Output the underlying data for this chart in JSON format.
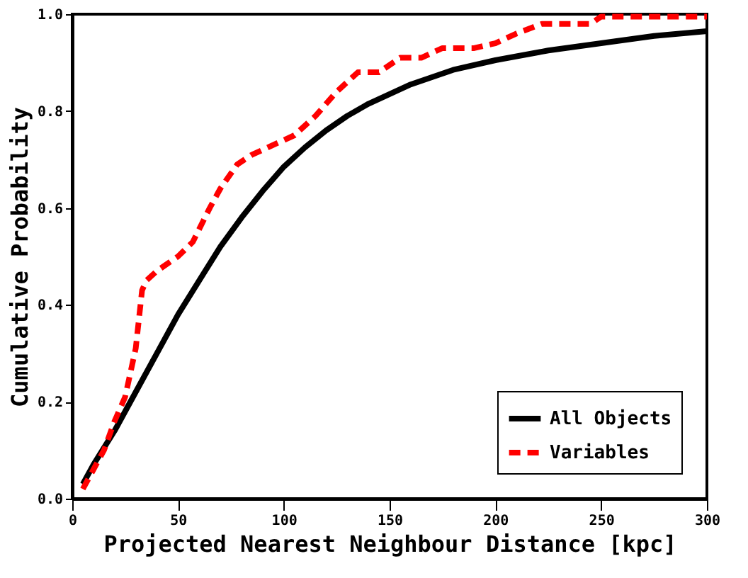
{
  "chart_data": {
    "type": "line",
    "xlabel": "Projected Nearest Neighbour Distance [kpc]",
    "ylabel": "Cumulative Probability",
    "xlim": [
      0,
      300
    ],
    "ylim": [
      0,
      1
    ],
    "xticks": [
      0,
      50,
      100,
      150,
      200,
      250,
      300
    ],
    "yticks": [
      {
        "value": 0,
        "label": "0.0"
      },
      {
        "value": 0.2,
        "label": "0.2"
      },
      {
        "value": 0.4,
        "label": "0.4"
      },
      {
        "value": 0.6,
        "label": "0.6"
      },
      {
        "value": 0.8,
        "label": "0.8"
      },
      {
        "value": 1,
        "label": "1.0"
      }
    ],
    "grid": false,
    "legend": "bottom right",
    "series": [
      {
        "name": "All Objects",
        "color": "#000000",
        "line_style": "solid",
        "x": [
          5,
          10,
          20,
          30,
          40,
          50,
          60,
          70,
          80,
          90,
          100,
          110,
          120,
          130,
          140,
          150,
          160,
          170,
          180,
          200,
          225,
          250,
          275,
          300
        ],
        "values": [
          0.03,
          0.07,
          0.14,
          0.22,
          0.3,
          0.38,
          0.45,
          0.52,
          0.58,
          0.635,
          0.685,
          0.725,
          0.76,
          0.79,
          0.815,
          0.835,
          0.855,
          0.87,
          0.885,
          0.905,
          0.925,
          0.94,
          0.955,
          0.965
        ]
      },
      {
        "name": "Variables",
        "color": "#ff0000",
        "line_style": "dashed",
        "x": [
          5,
          10,
          15,
          20,
          25,
          30,
          33,
          35,
          40,
          50,
          57,
          65,
          70,
          78,
          85,
          95,
          105,
          115,
          125,
          135,
          145,
          155,
          165,
          175,
          190,
          200,
          210,
          222,
          245,
          250,
          300
        ],
        "values": [
          0.02,
          0.06,
          0.1,
          0.16,
          0.21,
          0.31,
          0.43,
          0.45,
          0.47,
          0.5,
          0.53,
          0.6,
          0.64,
          0.69,
          0.71,
          0.73,
          0.75,
          0.79,
          0.84,
          0.88,
          0.88,
          0.91,
          0.91,
          0.93,
          0.93,
          0.94,
          0.96,
          0.98,
          0.98,
          0.995,
          0.995
        ]
      }
    ]
  }
}
